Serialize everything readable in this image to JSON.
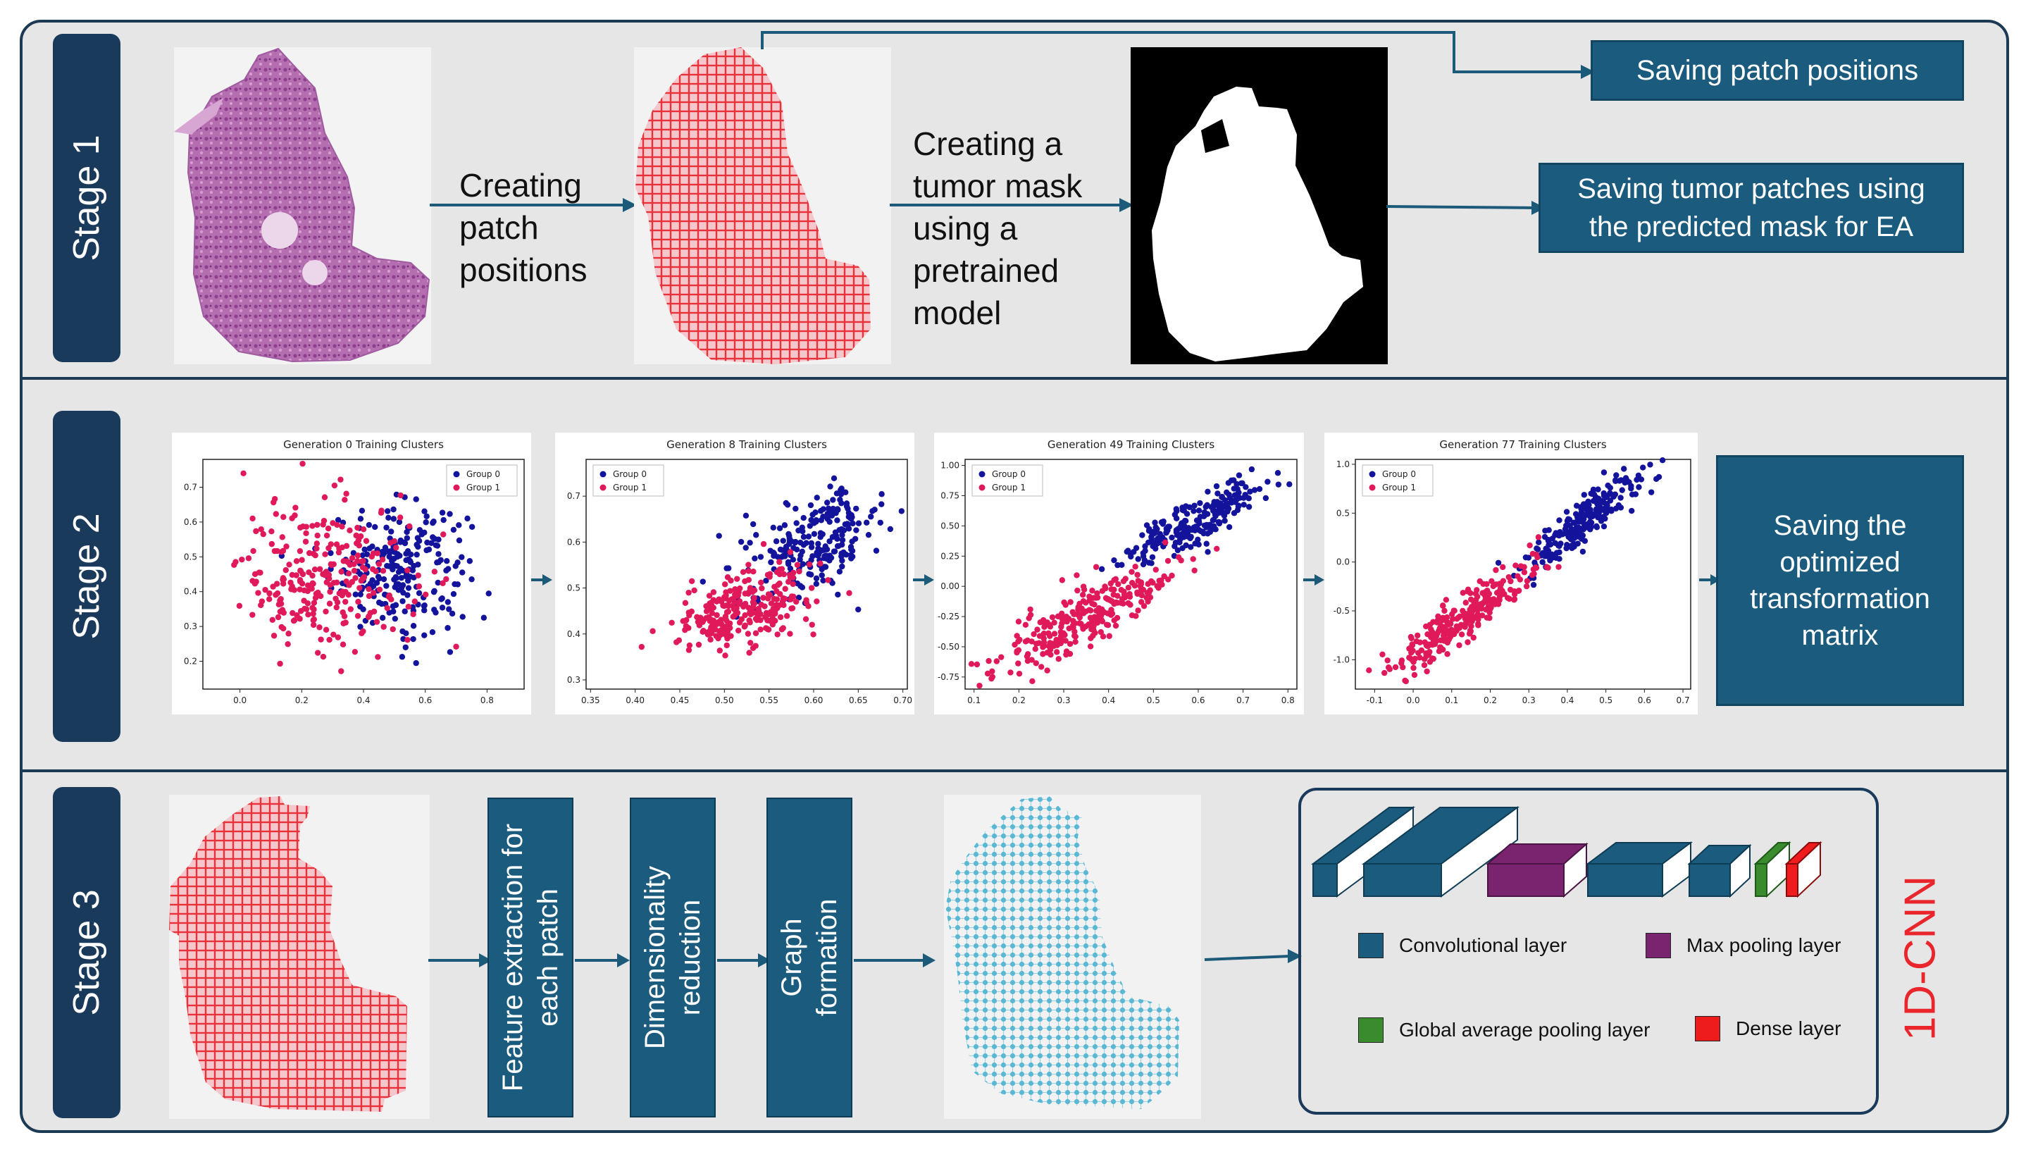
{
  "stage_labels": [
    "Stage 1",
    "Stage 2",
    "Stage 3"
  ],
  "stage1": {
    "step_creating_patches": [
      "Creating",
      "patch",
      "positions"
    ],
    "step_tumor_mask": [
      "Creating a",
      "tumor mask",
      "using a",
      "pretrained",
      "model"
    ],
    "save_positions": "Saving patch positions",
    "save_tumor_line1": "Saving tumor patches using",
    "save_tumor_line2": "the predicted mask for EA"
  },
  "stage2": {
    "save_matrix": [
      "Saving the",
      "optimized",
      "transformation",
      "matrix"
    ]
  },
  "stage3": {
    "feature_extraction": [
      "Feature extraction for",
      "each patch"
    ],
    "dim_reduction": [
      "Dimensionality",
      "reduction"
    ],
    "graph_formation": [
      "Graph",
      "formation"
    ],
    "legend": {
      "conv": "Convolutional layer",
      "maxpool": "Max pooling layer",
      "gap": "Global average pooling layer",
      "dense": "Dense layer"
    },
    "cnn_label": "1D-CNN"
  },
  "colors": {
    "navy": "#1a3a5b",
    "box_blue": "#1b5c7e",
    "arrow": "#1c5a7a",
    "patch_red": "#e8323a",
    "group0": "#13139c",
    "group1": "#e0195a",
    "maxpool": "#7a2470",
    "gap": "#3a8a2e",
    "dense": "#ee1c1c",
    "graph_node": "#5bb8d4"
  },
  "chart_data": [
    {
      "type": "scatter",
      "title": "Generation 0 Training Clusters",
      "legend": [
        "Group 0",
        "Group 1"
      ],
      "xlim": [
        -0.12,
        0.92
      ],
      "ylim": [
        0.12,
        0.78
      ],
      "xticks": [
        "0.0",
        "0.2",
        "0.4",
        "0.6",
        "0.8"
      ],
      "xtick_values": [
        0,
        0.2,
        0.4,
        0.6,
        0.8
      ],
      "yticks": [
        "0.2",
        "0.3",
        "0.4",
        "0.5",
        "0.6",
        "0.7"
      ],
      "ytick_values": [
        0.2,
        0.3,
        0.4,
        0.5,
        0.6,
        0.7
      ],
      "series": [
        {
          "name": "Group 0",
          "center": [
            0.52,
            0.47
          ],
          "spread": [
            0.11,
            0.09
          ],
          "rho": 0.0,
          "n": 230
        },
        {
          "name": "Group 1",
          "center": [
            0.28,
            0.44
          ],
          "spread": [
            0.14,
            0.11
          ],
          "rho": 0.0,
          "n": 270
        }
      ]
    },
    {
      "type": "scatter",
      "title": "Generation 8 Training Clusters",
      "legend": [
        "Group 0",
        "Group 1"
      ],
      "xlim": [
        0.345,
        0.705
      ],
      "ylim": [
        0.28,
        0.78
      ],
      "xticks": [
        "0.35",
        "0.40",
        "0.45",
        "0.50",
        "0.55",
        "0.60",
        "0.65",
        "0.70"
      ],
      "xtick_values": [
        0.35,
        0.4,
        0.45,
        0.5,
        0.55,
        0.6,
        0.65,
        0.7
      ],
      "yticks": [
        "0.3",
        "0.4",
        "0.5",
        "0.6",
        "0.7"
      ],
      "ytick_values": [
        0.3,
        0.4,
        0.5,
        0.6,
        0.7
      ],
      "series": [
        {
          "name": "Group 0",
          "center": [
            0.6,
            0.6
          ],
          "spread": [
            0.04,
            0.06
          ],
          "rho": 0.5,
          "n": 230
        },
        {
          "name": "Group 1",
          "center": [
            0.52,
            0.45
          ],
          "spread": [
            0.04,
            0.045
          ],
          "rho": 0.4,
          "n": 270
        }
      ]
    },
    {
      "type": "scatter",
      "title": "Generation 49 Training Clusters",
      "legend": [
        "Group 0",
        "Group 1"
      ],
      "xlim": [
        0.08,
        0.82
      ],
      "ylim": [
        -0.85,
        1.05
      ],
      "xticks": [
        "0.1",
        "0.2",
        "0.3",
        "0.4",
        "0.5",
        "0.6",
        "0.7",
        "0.8"
      ],
      "xtick_values": [
        0.1,
        0.2,
        0.3,
        0.4,
        0.5,
        0.6,
        0.7,
        0.8
      ],
      "yticks": [
        "1.00",
        "0.75",
        "0.50",
        "0.25",
        "0.00",
        "-0.25",
        "-0.50",
        "-0.75"
      ],
      "ytick_values": [
        1,
        0.75,
        0.5,
        0.25,
        0,
        -0.25,
        -0.5,
        -0.75
      ],
      "series": [
        {
          "name": "Group 0",
          "center": [
            0.6,
            0.55
          ],
          "spread": [
            0.08,
            0.18
          ],
          "rho": 0.85,
          "n": 230
        },
        {
          "name": "Group 1",
          "center": [
            0.35,
            -0.25
          ],
          "spread": [
            0.1,
            0.22
          ],
          "rho": 0.85,
          "n": 270
        }
      ]
    },
    {
      "type": "scatter",
      "title": "Generation 77 Training Clusters",
      "legend": [
        "Group 0",
        "Group 1"
      ],
      "xlim": [
        -0.15,
        0.72
      ],
      "ylim": [
        -1.3,
        1.05
      ],
      "xticks": [
        "-0.1",
        "0.0",
        "0.1",
        "0.2",
        "0.3",
        "0.4",
        "0.5",
        "0.6",
        "0.7"
      ],
      "xtick_values": [
        -0.1,
        0,
        0.1,
        0.2,
        0.3,
        0.4,
        0.5,
        0.6,
        0.7
      ],
      "yticks": [
        "1.0",
        "0.5",
        "0.0",
        "-0.5",
        "-1.0"
      ],
      "ytick_values": [
        1,
        0.5,
        0,
        -0.5,
        -1
      ],
      "series": [
        {
          "name": "Group 0",
          "center": [
            0.45,
            0.45
          ],
          "spread": [
            0.08,
            0.28
          ],
          "rho": 0.9,
          "n": 230
        },
        {
          "name": "Group 1",
          "center": [
            0.12,
            -0.6
          ],
          "spread": [
            0.1,
            0.3
          ],
          "rho": 0.9,
          "n": 270
        }
      ]
    }
  ]
}
